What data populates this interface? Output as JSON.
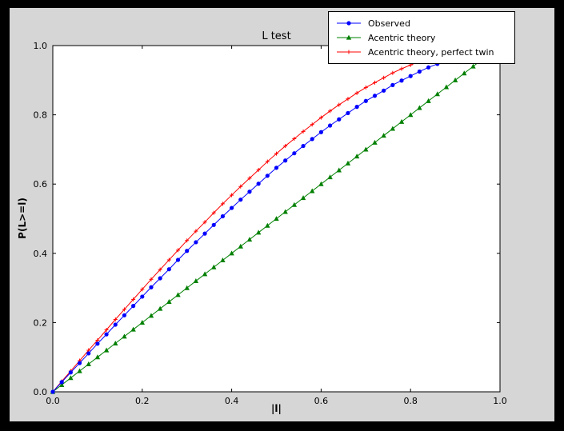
{
  "figure": {
    "title": "L test",
    "xlabel": "|l|",
    "ylabel": "P(L>=l)",
    "background": "#d6d6d6",
    "plot_bg": "#ffffff"
  },
  "legend": {
    "items": [
      {
        "label": "Observed",
        "color": "#0000ff",
        "marker": "circle"
      },
      {
        "label": "Acentric theory",
        "color": "#008000",
        "marker": "triangle"
      },
      {
        "label": "Acentric theory, perfect twin",
        "color": "#ff0000",
        "marker": "plus"
      }
    ]
  },
  "chart_data": {
    "type": "line",
    "title": "L test",
    "xlabel": "|l|",
    "ylabel": "P(L>=l)",
    "xlim": [
      0,
      1
    ],
    "ylim": [
      0,
      1
    ],
    "xticks": [
      0.0,
      0.2,
      0.4,
      0.6,
      0.8,
      1.0
    ],
    "yticks": [
      0.0,
      0.2,
      0.4,
      0.6,
      0.8,
      1.0
    ],
    "grid": false,
    "legend_position": "upper right",
    "series": [
      {
        "name": "Observed",
        "color": "#0000ff",
        "marker": "circle",
        "x": [
          0,
          0.02,
          0.04,
          0.06,
          0.08,
          0.1,
          0.12,
          0.14,
          0.16,
          0.18,
          0.2,
          0.22,
          0.24,
          0.26,
          0.28,
          0.3,
          0.32,
          0.34,
          0.36,
          0.38,
          0.4,
          0.42,
          0.44,
          0.46,
          0.48,
          0.5,
          0.52,
          0.54,
          0.56,
          0.58,
          0.6,
          0.62,
          0.64,
          0.66,
          0.68,
          0.7,
          0.72,
          0.74,
          0.76,
          0.78,
          0.8,
          0.82,
          0.84,
          0.86
        ],
        "y": [
          0,
          0.028,
          0.056,
          0.083,
          0.111,
          0.139,
          0.166,
          0.194,
          0.221,
          0.248,
          0.275,
          0.302,
          0.328,
          0.354,
          0.381,
          0.407,
          0.432,
          0.457,
          0.482,
          0.507,
          0.531,
          0.555,
          0.578,
          0.601,
          0.624,
          0.647,
          0.668,
          0.689,
          0.71,
          0.73,
          0.75,
          0.769,
          0.787,
          0.805,
          0.823,
          0.84,
          0.855,
          0.87,
          0.886,
          0.899,
          0.912,
          0.925,
          0.937,
          0.947
        ]
      },
      {
        "name": "Acentric theory",
        "color": "#008000",
        "marker": "triangle",
        "x": [
          0,
          0.02,
          0.04,
          0.06,
          0.08,
          0.1,
          0.12,
          0.14,
          0.16,
          0.18,
          0.2,
          0.22,
          0.24,
          0.26,
          0.28,
          0.3,
          0.32,
          0.34,
          0.36,
          0.38,
          0.4,
          0.42,
          0.44,
          0.46,
          0.48,
          0.5,
          0.52,
          0.54,
          0.56,
          0.58,
          0.6,
          0.62,
          0.64,
          0.66,
          0.68,
          0.7,
          0.72,
          0.74,
          0.76,
          0.78,
          0.8,
          0.82,
          0.84,
          0.86,
          0.88,
          0.9,
          0.92,
          0.94,
          0.96
        ],
        "y": [
          0,
          0.02,
          0.04,
          0.06,
          0.08,
          0.1,
          0.12,
          0.14,
          0.16,
          0.18,
          0.2,
          0.22,
          0.24,
          0.26,
          0.28,
          0.3,
          0.32,
          0.34,
          0.36,
          0.38,
          0.4,
          0.42,
          0.44,
          0.46,
          0.48,
          0.5,
          0.52,
          0.54,
          0.56,
          0.58,
          0.6,
          0.62,
          0.64,
          0.66,
          0.68,
          0.7,
          0.72,
          0.74,
          0.76,
          0.78,
          0.8,
          0.82,
          0.84,
          0.86,
          0.88,
          0.9,
          0.92,
          0.94,
          0.96
        ]
      },
      {
        "name": "Acentric theory, perfect twin",
        "color": "#ff0000",
        "marker": "plus",
        "x": [
          0,
          0.02,
          0.04,
          0.06,
          0.08,
          0.1,
          0.12,
          0.14,
          0.16,
          0.18,
          0.2,
          0.22,
          0.24,
          0.26,
          0.28,
          0.3,
          0.32,
          0.34,
          0.36,
          0.38,
          0.4,
          0.42,
          0.44,
          0.46,
          0.48,
          0.5,
          0.52,
          0.54,
          0.56,
          0.58,
          0.6,
          0.62,
          0.64,
          0.66,
          0.68,
          0.7,
          0.72,
          0.74,
          0.76,
          0.78,
          0.8,
          0.82,
          0.84,
          0.86
        ],
        "y": [
          0,
          0.03,
          0.06,
          0.09,
          0.12,
          0.149,
          0.179,
          0.209,
          0.238,
          0.267,
          0.296,
          0.325,
          0.353,
          0.381,
          0.409,
          0.437,
          0.464,
          0.49,
          0.517,
          0.543,
          0.568,
          0.593,
          0.617,
          0.641,
          0.665,
          0.688,
          0.71,
          0.731,
          0.752,
          0.772,
          0.792,
          0.811,
          0.829,
          0.846,
          0.863,
          0.879,
          0.893,
          0.907,
          0.921,
          0.933,
          0.944,
          0.954,
          0.964,
          0.972
        ]
      }
    ]
  }
}
